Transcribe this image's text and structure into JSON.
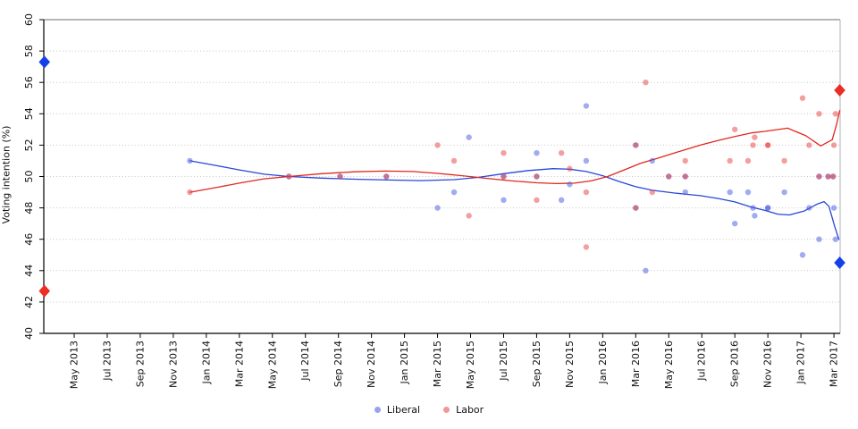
{
  "chart_data": {
    "type": "scatter",
    "title": "",
    "ylabel": "Voting intention (%)",
    "ylim": [
      40,
      60
    ],
    "ytick_step": 2,
    "grid": "dotted horizontal gridlines at every 2 units",
    "legend_position": "bottom center",
    "x_axis_start": "May 2013",
    "x_tick_step_months": 2,
    "x_tick_labels": [
      "May 2013",
      "Jul 2013",
      "Sep 2013",
      "Nov 2013",
      "Jan 2014",
      "Mar 2014",
      "May 2014",
      "Jul 2014",
      "Sep 2014",
      "Nov 2014",
      "Jan 2015",
      "Mar 2015",
      "May 2015",
      "Jul 2015",
      "Sep 2015",
      "Nov 2015",
      "Jan 2016",
      "Mar 2016",
      "May 2016",
      "Jul 2016",
      "Sep 2016",
      "Nov 2016",
      "Jan 2017",
      "Mar 2017"
    ],
    "series": [
      {
        "name": "Liberal",
        "point_color": "#4458e0",
        "point_opacity": 0.5,
        "line_color": "#2747d8",
        "election_color": "#1540e8"
      },
      {
        "name": "Labor",
        "point_color": "#e84040",
        "point_opacity": 0.5,
        "line_color": "#e0281e",
        "election_color": "#ea2e24"
      }
    ],
    "polls": [
      {
        "m": 7.0,
        "date": "Dec 2013",
        "liberal": 51,
        "labor": 49
      },
      {
        "m": 13.0,
        "date": "Jun 2014",
        "liberal": 50,
        "labor": 50
      },
      {
        "m": 16.1,
        "date": "Sep 2014",
        "liberal": 50,
        "labor": 50
      },
      {
        "m": 18.9,
        "date": "Dec 2014",
        "liberal": 50,
        "labor": 50
      },
      {
        "m": 22.0,
        "date": "Mar 2015",
        "liberal": 48,
        "labor": 52
      },
      {
        "m": 23.0,
        "date": "Apr 2015",
        "liberal": 49,
        "labor": 51
      },
      {
        "m": 23.9,
        "date": "May 2015",
        "liberal": 52.5,
        "labor": 47.5
      },
      {
        "m": 26.0,
        "date": "Jul 2015",
        "liberal": 48.5,
        "labor": 51.5
      },
      {
        "m": 26.0,
        "date": "Jul 2015",
        "liberal": 50,
        "labor": 50
      },
      {
        "m": 28.0,
        "date": "Sep 2015",
        "liberal": 51.5,
        "labor": 48.5
      },
      {
        "m": 28.0,
        "date": "Sep 2015",
        "liberal": 50,
        "labor": 50
      },
      {
        "m": 29.5,
        "date": "Oct 2015",
        "liberal": 48.5,
        "labor": 51.5
      },
      {
        "m": 30.0,
        "date": "Nov 2015",
        "liberal": 49.5,
        "labor": 50.5
      },
      {
        "m": 31.0,
        "date": "Dec 2015",
        "liberal": 51,
        "labor": 49
      },
      {
        "m": 31.0,
        "date": "Dec 2015",
        "liberal": 54.5,
        "labor": 45.5
      },
      {
        "m": 34.0,
        "date": "Mar 2016",
        "liberal": 52,
        "labor": 48
      },
      {
        "m": 34.0,
        "date": "Mar 2016",
        "liberal": 48,
        "labor": 52
      },
      {
        "m": 34.6,
        "date": "Mar 2016",
        "liberal": 44,
        "labor": 56
      },
      {
        "m": 35.0,
        "date": "Apr 2016",
        "liberal": 51,
        "labor": 49
      },
      {
        "m": 36.0,
        "date": "May 2016",
        "liberal": 50,
        "labor": 50
      },
      {
        "m": 37.0,
        "date": "Jun 2016",
        "liberal": 49,
        "labor": 51
      },
      {
        "m": 37.0,
        "date": "Jun 2016",
        "liberal": 50,
        "labor": 50
      },
      {
        "m": 39.7,
        "date": "Aug 2016",
        "liberal": 49,
        "labor": 51
      },
      {
        "m": 40.0,
        "date": "Sep 2016",
        "liberal": 47,
        "labor": 53
      },
      {
        "m": 40.8,
        "date": "Oct 2016",
        "liberal": 49,
        "labor": 51
      },
      {
        "m": 41.1,
        "date": "Oct 2016",
        "liberal": 48,
        "labor": 52
      },
      {
        "m": 41.2,
        "date": "Oct 2016",
        "liberal": 47.5,
        "labor": 52.5
      },
      {
        "m": 42.0,
        "date": "Nov 2016",
        "liberal": 48,
        "labor": 52
      },
      {
        "m": 42.0,
        "date": "Nov 2016",
        "liberal": 48,
        "labor": 52
      },
      {
        "m": 43.0,
        "date": "Dec 2016",
        "liberal": 49,
        "labor": 51
      },
      {
        "m": 44.1,
        "date": "Jan 2017",
        "liberal": 45,
        "labor": 55
      },
      {
        "m": 44.5,
        "date": "Jan 2017",
        "liberal": 48,
        "labor": 52
      },
      {
        "m": 45.1,
        "date": "Feb 2017",
        "liberal": 46,
        "labor": 54
      },
      {
        "m": 45.1,
        "date": "Feb 2017",
        "liberal": 50,
        "labor": 50
      },
      {
        "m": 45.65,
        "date": "Feb 2017",
        "liberal": 50,
        "labor": 50
      },
      {
        "m": 45.95,
        "date": "Mar 2017",
        "liberal": 50,
        "labor": 50
      },
      {
        "m": 46.0,
        "date": "Mar 2017",
        "liberal": 48,
        "labor": 52
      },
      {
        "m": 46.1,
        "date": "Mar 2017",
        "liberal": 46,
        "labor": 54
      }
    ],
    "elections": [
      {
        "m": -1.8,
        "date": "Mar 2013",
        "liberal": 57.3,
        "labor": 42.7
      },
      {
        "m": 46.35,
        "date": "Mar 2017",
        "liberal": 44.5,
        "labor": 55.5
      }
    ],
    "trend": {
      "liberal": [
        [
          7,
          51
        ],
        [
          8.5,
          50.72
        ],
        [
          10,
          50.42
        ],
        [
          11.5,
          50.15
        ],
        [
          13,
          50
        ],
        [
          15,
          49.9
        ],
        [
          17,
          49.83
        ],
        [
          19,
          49.78
        ],
        [
          21,
          49.74
        ],
        [
          23,
          49.8
        ],
        [
          24.5,
          49.95
        ],
        [
          26,
          50.18
        ],
        [
          27.5,
          50.38
        ],
        [
          29,
          50.5
        ],
        [
          30,
          50.47
        ],
        [
          31,
          50.32
        ],
        [
          32,
          50.05
        ],
        [
          33,
          49.68
        ],
        [
          34,
          49.35
        ],
        [
          35,
          49.12
        ],
        [
          36.3,
          48.95
        ],
        [
          37.9,
          48.78
        ],
        [
          39,
          48.6
        ],
        [
          40,
          48.38
        ],
        [
          41,
          48.05
        ],
        [
          41.8,
          47.85
        ],
        [
          42.6,
          47.6
        ],
        [
          43.3,
          47.55
        ],
        [
          44.2,
          47.8
        ],
        [
          45,
          48.25
        ],
        [
          45.4,
          48.4
        ],
        [
          45.7,
          48.1
        ],
        [
          46.05,
          46.8
        ],
        [
          46.3,
          46
        ]
      ],
      "labor": [
        [
          7,
          49
        ],
        [
          8.5,
          49.28
        ],
        [
          10,
          49.58
        ],
        [
          11.5,
          49.85
        ],
        [
          13,
          50
        ],
        [
          15,
          50.18
        ],
        [
          17,
          50.3
        ],
        [
          18.8,
          50.35
        ],
        [
          20.5,
          50.32
        ],
        [
          22,
          50.2
        ],
        [
          23.5,
          50.05
        ],
        [
          25,
          49.88
        ],
        [
          26.5,
          49.72
        ],
        [
          28,
          49.6
        ],
        [
          29.2,
          49.55
        ],
        [
          30.3,
          49.58
        ],
        [
          31.3,
          49.72
        ],
        [
          32.3,
          50
        ],
        [
          33.3,
          50.42
        ],
        [
          34.3,
          50.85
        ],
        [
          35.3,
          51.15
        ],
        [
          36.5,
          51.55
        ],
        [
          37.9,
          52
        ],
        [
          39,
          52.3
        ],
        [
          40,
          52.55
        ],
        [
          41,
          52.78
        ],
        [
          41.8,
          52.88
        ],
        [
          43.2,
          53.08
        ],
        [
          44.3,
          52.6
        ],
        [
          45.2,
          51.95
        ],
        [
          45.9,
          52.35
        ],
        [
          46.15,
          53.3
        ],
        [
          46.35,
          54.2
        ]
      ]
    }
  }
}
